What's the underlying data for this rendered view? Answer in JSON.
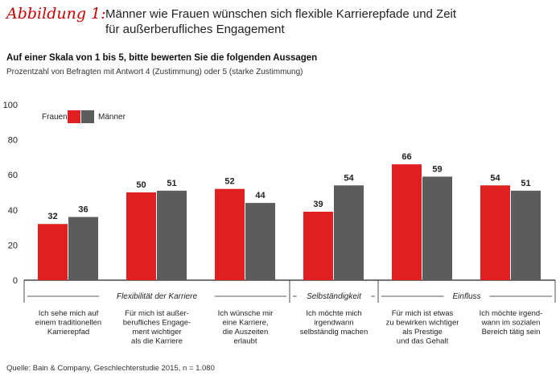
{
  "header": {
    "figure_label": "Abbildung 1:",
    "title_line1": "Männer wie Frauen wünschen sich flexible Karrierepfade und Zeit",
    "title_line2": "für außerberufliches Engagement",
    "subtitle": "Auf einer Skala von 1 bis 5, bitte bewerten Sie die folgenden Aussagen",
    "note": "Prozentzahl von Befragten mit Antwort 4 (Zustimmung) oder 5 (starke Zustimmung)"
  },
  "source": "Quelle: Bain & Company, Geschlechterstudie 2015, n = 1.080",
  "colors": {
    "frauen": "#e02020",
    "maenner": "#5c5c5c"
  },
  "chart_data": {
    "type": "bar",
    "categories": [
      [
        "Ich sehe mich auf",
        "einem traditionellen",
        "Karrierepfad"
      ],
      [
        "Für mich ist außer-",
        "berufliches Engage-",
        "ment wichtiger",
        "als die Karriere"
      ],
      [
        "Ich wünsche mir",
        "eine Karriere,",
        "die Auszeiten",
        "erlaubt"
      ],
      [
        "Ich möchte mich",
        "irgendwann",
        "selbständig machen"
      ],
      [
        "Für mich ist etwas",
        "zu bewirken wichtiger",
        "als Prestige",
        "und das Gehalt"
      ],
      [
        "Ich möchte irgend-",
        "wann im sozialen",
        "Bereich tätig sein"
      ]
    ],
    "series": [
      {
        "name": "Frauen",
        "values": [
          32,
          50,
          52,
          39,
          66,
          54
        ]
      },
      {
        "name": "Männer",
        "values": [
          36,
          51,
          44,
          54,
          59,
          51
        ]
      }
    ],
    "ylim": [
      0,
      100
    ],
    "yticks": [
      0,
      20,
      40,
      60,
      80,
      100
    ],
    "grid": false,
    "legend_position": "top-left",
    "groups": [
      {
        "label": "Flexibilität der Karriere",
        "start": 0,
        "end": 2
      },
      {
        "label": "Selbständigkeit",
        "start": 3,
        "end": 3
      },
      {
        "label": "Einfluss",
        "start": 4,
        "end": 5
      }
    ]
  }
}
